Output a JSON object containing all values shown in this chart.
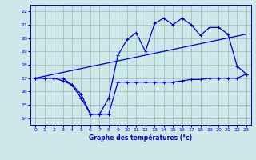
{
  "xlabel": "Graphe des températures (°c)",
  "ylabel": "",
  "background_color": "#cce8e8",
  "line_color": "#0000cc",
  "grid_color": "#99bbbb",
  "ylim": [
    13.5,
    22.5
  ],
  "xlim": [
    -0.5,
    23.5
  ],
  "yticks": [
    14,
    15,
    16,
    17,
    18,
    19,
    20,
    21,
    22
  ],
  "xticks": [
    0,
    1,
    2,
    3,
    4,
    5,
    6,
    7,
    8,
    9,
    10,
    11,
    12,
    13,
    14,
    15,
    16,
    17,
    18,
    19,
    20,
    21,
    22,
    23
  ],
  "curve_temp_x": [
    0,
    1,
    2,
    3,
    4,
    5,
    6,
    7,
    8,
    9,
    10,
    11,
    12,
    13,
    14,
    15,
    16,
    17,
    18,
    19,
    20,
    21,
    22,
    23
  ],
  "curve_temp_y": [
    17.0,
    17.0,
    17.0,
    17.0,
    16.5,
    15.5,
    14.3,
    14.3,
    15.5,
    18.7,
    19.9,
    20.4,
    19.0,
    21.1,
    21.5,
    21.0,
    21.5,
    21.0,
    20.2,
    20.8,
    20.8,
    20.3,
    17.9,
    17.3
  ],
  "curve_dew_x": [
    0,
    1,
    2,
    3,
    4,
    5,
    6,
    7,
    8,
    9,
    10,
    11,
    12,
    13,
    14,
    15,
    16,
    17,
    18,
    19,
    20,
    21,
    22,
    23
  ],
  "curve_dew_y": [
    17.0,
    17.0,
    17.0,
    16.8,
    16.5,
    15.8,
    14.3,
    14.3,
    14.3,
    16.7,
    16.7,
    16.7,
    16.7,
    16.7,
    16.7,
    16.7,
    16.8,
    16.9,
    16.9,
    17.0,
    17.0,
    17.0,
    17.0,
    17.3
  ],
  "trend_x": [
    0,
    23
  ],
  "trend_y": [
    17.0,
    20.3
  ]
}
